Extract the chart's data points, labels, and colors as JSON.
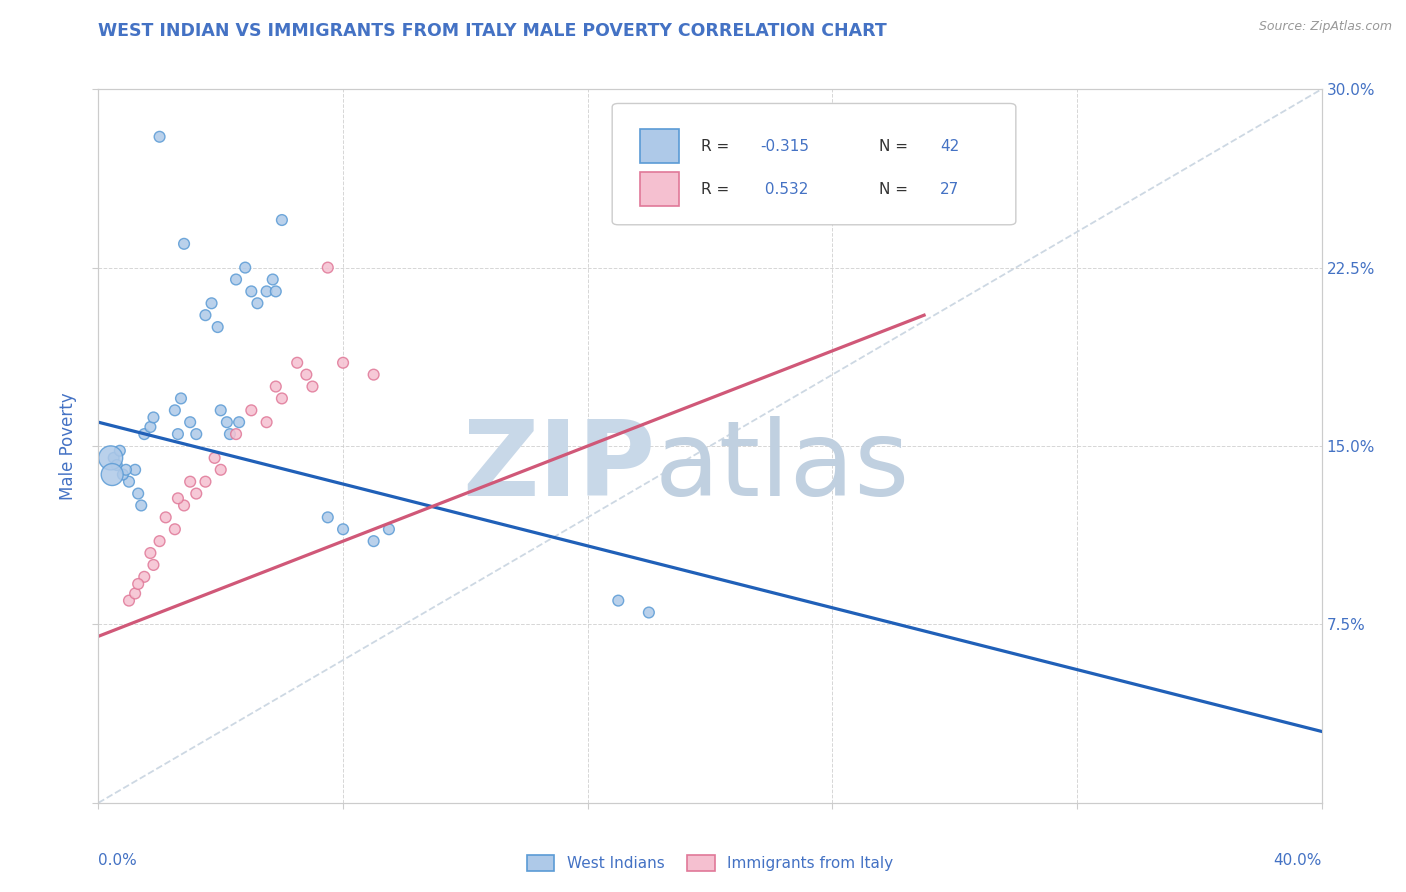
{
  "title": "WEST INDIAN VS IMMIGRANTS FROM ITALY MALE POVERTY CORRELATION CHART",
  "source": "Source: ZipAtlas.com",
  "ylabel": "Male Poverty",
  "right_yticks": [
    0,
    7.5,
    15.0,
    22.5,
    30.0
  ],
  "right_ytick_labels": [
    "",
    "7.5%",
    "15.0%",
    "22.5%",
    "30.0%"
  ],
  "blue_fill": "#aec9e8",
  "blue_edge": "#5b9bd5",
  "pink_fill": "#f5c0d0",
  "pink_edge": "#e07898",
  "trend_blue": "#2060b8",
  "trend_pink": "#d05878",
  "ref_line_color": "#c8d4e0",
  "watermark_zip_color": "#c8d8e8",
  "watermark_atlas_color": "#c0d0e0",
  "title_color": "#4472c4",
  "axis_label_color": "#4472c4",
  "tick_color": "#4472c4",
  "bg_color": "#ffffff",
  "grid_color": "#cccccc",
  "wi_x": [
    2.0,
    2.8,
    4.5,
    4.8,
    5.0,
    5.2,
    5.5,
    5.7,
    5.8,
    6.0,
    3.5,
    3.7,
    3.9,
    4.0,
    4.2,
    4.3,
    4.6,
    1.5,
    1.7,
    1.8,
    2.5,
    2.6,
    2.7,
    3.0,
    3.2,
    1.0,
    1.2,
    1.3,
    1.4,
    0.5,
    0.6,
    0.7,
    0.8,
    0.9,
    7.5,
    8.0,
    9.0,
    9.5,
    17.0,
    18.0,
    0.4,
    0.45
  ],
  "wi_y": [
    28.0,
    23.5,
    22.0,
    22.5,
    21.5,
    21.0,
    21.5,
    22.0,
    21.5,
    24.5,
    20.5,
    21.0,
    20.0,
    16.5,
    16.0,
    15.5,
    16.0,
    15.5,
    15.8,
    16.2,
    16.5,
    15.5,
    17.0,
    16.0,
    15.5,
    13.5,
    14.0,
    13.0,
    12.5,
    14.5,
    14.2,
    14.8,
    13.8,
    14.0,
    12.0,
    11.5,
    11.0,
    11.5,
    8.5,
    8.0,
    14.5,
    13.8
  ],
  "wi_s": [
    60,
    60,
    60,
    60,
    60,
    60,
    60,
    60,
    60,
    60,
    60,
    60,
    60,
    60,
    60,
    60,
    60,
    60,
    60,
    60,
    60,
    60,
    60,
    60,
    60,
    60,
    60,
    60,
    60,
    60,
    60,
    60,
    60,
    60,
    60,
    60,
    60,
    60,
    60,
    60,
    300,
    250
  ],
  "it_x": [
    1.0,
    1.2,
    1.5,
    1.8,
    2.0,
    2.5,
    2.8,
    3.0,
    3.2,
    3.5,
    4.0,
    4.5,
    5.0,
    5.5,
    6.0,
    6.5,
    7.0,
    8.0,
    9.0,
    1.3,
    1.7,
    2.2,
    2.6,
    3.8,
    5.8,
    6.8,
    7.5
  ],
  "it_y": [
    8.5,
    8.8,
    9.5,
    10.0,
    11.0,
    11.5,
    12.5,
    13.5,
    13.0,
    13.5,
    14.0,
    15.5,
    16.5,
    16.0,
    17.0,
    18.5,
    17.5,
    18.5,
    18.0,
    9.2,
    10.5,
    12.0,
    12.8,
    14.5,
    17.5,
    18.0,
    22.5
  ],
  "it_s": [
    60,
    60,
    60,
    60,
    60,
    60,
    60,
    60,
    60,
    60,
    60,
    60,
    60,
    60,
    60,
    60,
    60,
    60,
    60,
    60,
    60,
    60,
    60,
    60,
    60,
    60,
    60
  ],
  "xlim": [
    0,
    40
  ],
  "ylim": [
    0,
    30
  ],
  "blue_trend_x": [
    0,
    40
  ],
  "blue_trend_y": [
    16.0,
    3.0
  ],
  "pink_trend_x": [
    0,
    27
  ],
  "pink_trend_y": [
    7.0,
    20.5
  ]
}
